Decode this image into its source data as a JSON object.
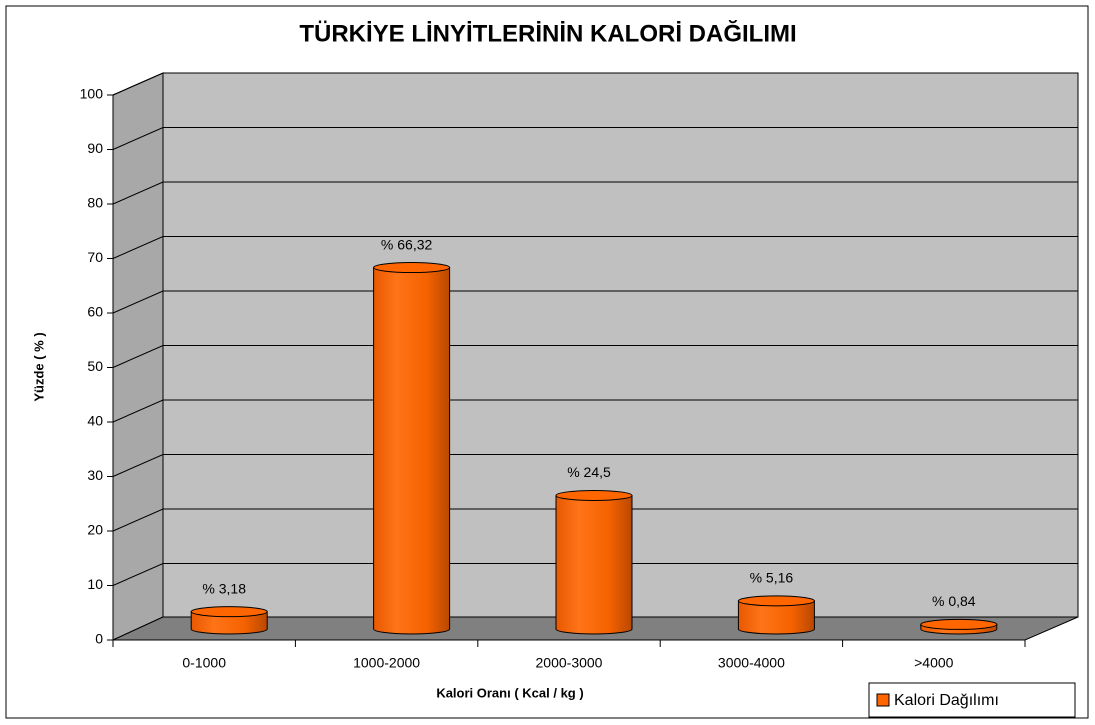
{
  "chart_data": {
    "type": "bar3d",
    "title": "TÜRKİYE LİNYİTLERİNİN KALORİ DAĞILIMI",
    "x_label": "Kalori Oranı ( Kcal / kg )",
    "y_label": "Yüzde ( % )",
    "categories": [
      "0-1000",
      "1000-2000",
      "2000-3000",
      "3000-4000",
      ">4000"
    ],
    "series": [
      {
        "name": "Kalori Dağılımı",
        "color": "#ff6600",
        "values": [
          3.18,
          66.32,
          24.5,
          5.16,
          0.84
        ],
        "value_labels": [
          "% 3,18",
          "% 66,32",
          "% 24,5",
          "% 5,16",
          "% 0,84"
        ]
      }
    ],
    "ylim": [
      0,
      100
    ],
    "yticks": [
      0,
      10,
      20,
      30,
      40,
      50,
      60,
      70,
      80,
      90,
      100
    ],
    "grid": true,
    "legend": "bottom-right"
  }
}
